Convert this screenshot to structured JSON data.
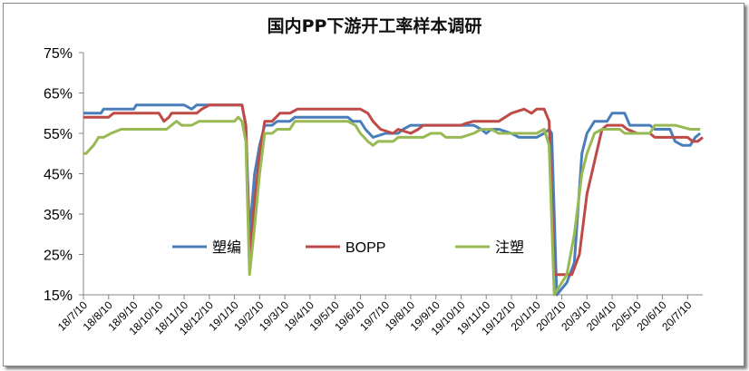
{
  "chart_data": {
    "type": "line",
    "title": "国内PP下游开工率样本调研",
    "xlabel": "",
    "ylabel": "",
    "ylim": [
      15,
      75
    ],
    "y_ticks": [
      "15%",
      "25%",
      "35%",
      "45%",
      "55%",
      "65%",
      "75%"
    ],
    "x_ticks": [
      "18/7/10",
      "18/8/10",
      "18/9/10",
      "18/10/10",
      "18/11/10",
      "18/12/10",
      "19/1/10",
      "19/2/10",
      "19/3/10",
      "19/4/10",
      "19/5/10",
      "19/6/10",
      "19/7/10",
      "19/8/10",
      "19/9/10",
      "19/10/10",
      "19/11/10",
      "19/12/10",
      "20/1/10",
      "20/2/10",
      "20/3/10",
      "20/4/10",
      "20/5/10",
      "20/6/10",
      "20/7/10"
    ],
    "grid": false,
    "legend_position": "inside-bottom-center",
    "series": [
      {
        "name": "塑编",
        "color": "#4a7ebb",
        "points": [
          [
            0,
            60
          ],
          [
            0.7,
            60
          ],
          [
            0.8,
            61
          ],
          [
            2,
            61
          ],
          [
            2.1,
            62
          ],
          [
            4,
            62
          ],
          [
            4.3,
            61
          ],
          [
            4.5,
            62
          ],
          [
            6,
            62
          ],
          [
            6.3,
            62
          ],
          [
            6.45,
            57
          ],
          [
            6.6,
            30
          ],
          [
            6.8,
            45
          ],
          [
            7,
            52
          ],
          [
            7.2,
            57
          ],
          [
            7.5,
            57
          ],
          [
            7.7,
            58
          ],
          [
            8.2,
            58
          ],
          [
            8.4,
            59
          ],
          [
            10.5,
            59
          ],
          [
            10.7,
            58
          ],
          [
            11,
            58
          ],
          [
            11.2,
            56
          ],
          [
            11.5,
            54
          ],
          [
            12,
            55
          ],
          [
            12.5,
            55
          ],
          [
            12.7,
            56
          ],
          [
            13,
            57
          ],
          [
            15.5,
            57
          ],
          [
            15.8,
            56
          ],
          [
            16,
            55
          ],
          [
            16.2,
            56
          ],
          [
            16.5,
            56
          ],
          [
            17,
            55
          ],
          [
            17.3,
            54
          ],
          [
            18,
            54
          ],
          [
            18.3,
            55
          ],
          [
            18.5,
            56
          ],
          [
            18.6,
            55
          ],
          [
            18.8,
            15
          ],
          [
            19.2,
            18
          ],
          [
            19.5,
            23
          ],
          [
            19.8,
            50
          ],
          [
            20,
            55
          ],
          [
            20.3,
            58
          ],
          [
            20.8,
            58
          ],
          [
            21,
            60
          ],
          [
            21.5,
            60
          ],
          [
            21.7,
            57
          ],
          [
            22.5,
            57
          ],
          [
            22.7,
            56
          ],
          [
            23.3,
            56
          ],
          [
            23.5,
            53
          ],
          [
            23.8,
            52
          ],
          [
            24.1,
            52
          ],
          [
            24.3,
            54
          ],
          [
            24.5,
            55
          ]
        ]
      },
      {
        "name": "BOPP",
        "color": "#be4b48",
        "points": [
          [
            0,
            59
          ],
          [
            1,
            59
          ],
          [
            1.2,
            60
          ],
          [
            3,
            60
          ],
          [
            3.2,
            58
          ],
          [
            3.4,
            59
          ],
          [
            3.5,
            60
          ],
          [
            4.5,
            60
          ],
          [
            4.7,
            61
          ],
          [
            5,
            62
          ],
          [
            6.3,
            62
          ],
          [
            6.45,
            57
          ],
          [
            6.6,
            24
          ],
          [
            6.8,
            38
          ],
          [
            7,
            50
          ],
          [
            7.2,
            58
          ],
          [
            7.5,
            58
          ],
          [
            7.8,
            60
          ],
          [
            8.2,
            60
          ],
          [
            8.5,
            61
          ],
          [
            11,
            61
          ],
          [
            11.3,
            60
          ],
          [
            11.5,
            58
          ],
          [
            11.8,
            56
          ],
          [
            12.3,
            55
          ],
          [
            12.5,
            56
          ],
          [
            13,
            55
          ],
          [
            13.3,
            56
          ],
          [
            13.5,
            57
          ],
          [
            15,
            57
          ],
          [
            15.2,
            57.5
          ],
          [
            15.5,
            58
          ],
          [
            16.5,
            58
          ],
          [
            17,
            60
          ],
          [
            17.5,
            61
          ],
          [
            17.8,
            60
          ],
          [
            18,
            61
          ],
          [
            18.3,
            61
          ],
          [
            18.5,
            58
          ],
          [
            18.7,
            20
          ],
          [
            19.4,
            20
          ],
          [
            19.7,
            25
          ],
          [
            20,
            40
          ],
          [
            20.3,
            48
          ],
          [
            20.6,
            56
          ],
          [
            20.8,
            57
          ],
          [
            21.4,
            57
          ],
          [
            21.6,
            56
          ],
          [
            22,
            55
          ],
          [
            22.5,
            55
          ],
          [
            22.7,
            54
          ],
          [
            24,
            54
          ],
          [
            24.2,
            53
          ],
          [
            24.4,
            53
          ],
          [
            24.6,
            54
          ]
        ]
      },
      {
        "name": "注塑",
        "color": "#98b954",
        "points": [
          [
            0,
            50
          ],
          [
            0.1,
            50
          ],
          [
            0.4,
            52
          ],
          [
            0.6,
            54
          ],
          [
            0.8,
            54
          ],
          [
            1.1,
            55
          ],
          [
            1.5,
            56
          ],
          [
            3.3,
            56
          ],
          [
            3.5,
            57
          ],
          [
            3.7,
            58
          ],
          [
            3.9,
            57
          ],
          [
            4.3,
            57
          ],
          [
            4.6,
            58
          ],
          [
            6,
            58
          ],
          [
            6.15,
            59
          ],
          [
            6.3,
            58
          ],
          [
            6.45,
            53
          ],
          [
            6.6,
            20
          ],
          [
            6.8,
            32
          ],
          [
            7,
            45
          ],
          [
            7.2,
            55
          ],
          [
            7.5,
            55
          ],
          [
            7.7,
            56
          ],
          [
            8.2,
            56
          ],
          [
            8.4,
            58
          ],
          [
            10.5,
            58
          ],
          [
            10.8,
            57
          ],
          [
            11,
            55
          ],
          [
            11.3,
            53
          ],
          [
            11.5,
            52
          ],
          [
            11.7,
            53
          ],
          [
            12.3,
            53
          ],
          [
            12.5,
            54
          ],
          [
            13.5,
            54
          ],
          [
            13.8,
            55
          ],
          [
            14.2,
            55
          ],
          [
            14.4,
            54
          ],
          [
            15,
            54
          ],
          [
            15.5,
            55
          ],
          [
            15.8,
            56
          ],
          [
            16.2,
            56
          ],
          [
            16.5,
            55
          ],
          [
            18,
            55
          ],
          [
            18.3,
            56
          ],
          [
            18.5,
            52
          ],
          [
            18.7,
            15
          ],
          [
            19.2,
            20
          ],
          [
            19.5,
            30
          ],
          [
            19.8,
            45
          ],
          [
            20,
            50
          ],
          [
            20.3,
            55
          ],
          [
            20.6,
            56
          ],
          [
            21.3,
            56
          ],
          [
            21.5,
            55
          ],
          [
            22.5,
            55
          ],
          [
            22.7,
            57
          ],
          [
            23.3,
            57
          ],
          [
            23.5,
            57
          ],
          [
            24.1,
            56
          ],
          [
            24.5,
            56
          ]
        ]
      }
    ]
  }
}
